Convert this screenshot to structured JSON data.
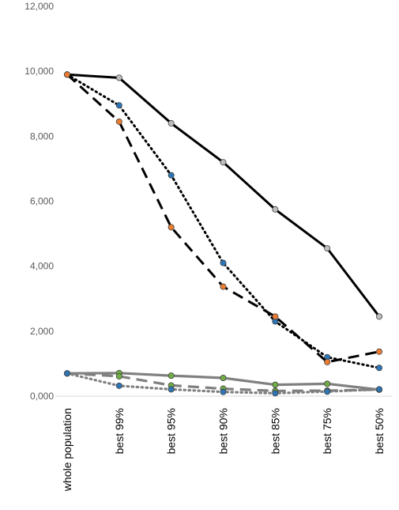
{
  "chart_data": {
    "type": "line",
    "title": "",
    "xlabel": "",
    "ylabel": "",
    "categories": [
      "whole population",
      "best 99%",
      "best 95%",
      "best 90%",
      "best 85%",
      "best 75%",
      "best 50%"
    ],
    "ylim": [
      0,
      12000
    ],
    "y_ticks": [
      0,
      2000,
      4000,
      6000,
      8000,
      10000,
      12000
    ],
    "y_tick_labels": [
      "0,000",
      "2,000",
      "4,000",
      "6,000",
      "8,000",
      "10,000",
      "12,000"
    ],
    "grid": false,
    "legend": "none",
    "series": [
      {
        "style": "solid",
        "line_color": "#000000",
        "marker_color": "#bfbfbf",
        "values": [
          9900,
          9800,
          8400,
          7200,
          5750,
          4550,
          2450
        ]
      },
      {
        "style": "dotted",
        "line_color": "#000000",
        "marker_color": "#2e75b6",
        "values": [
          9900,
          8950,
          6800,
          4100,
          2300,
          1200,
          870
        ]
      },
      {
        "style": "dashed",
        "line_color": "#000000",
        "marker_color": "#ed7d31",
        "values": [
          9900,
          8450,
          5200,
          3370,
          2450,
          1050,
          1370
        ]
      },
      {
        "style": "solid",
        "line_color": "#808080",
        "marker_color": "#70ad47",
        "values": [
          700,
          710,
          630,
          560,
          350,
          380,
          200
        ]
      },
      {
        "style": "dashed",
        "line_color": "#808080",
        "marker_color": "#70ad47",
        "values": [
          700,
          610,
          330,
          230,
          160,
          170,
          200
        ]
      },
      {
        "style": "dotted",
        "line_color": "#808080",
        "marker_color": "#2e75b6",
        "values": [
          700,
          320,
          210,
          130,
          90,
          140,
          210
        ]
      }
    ]
  }
}
